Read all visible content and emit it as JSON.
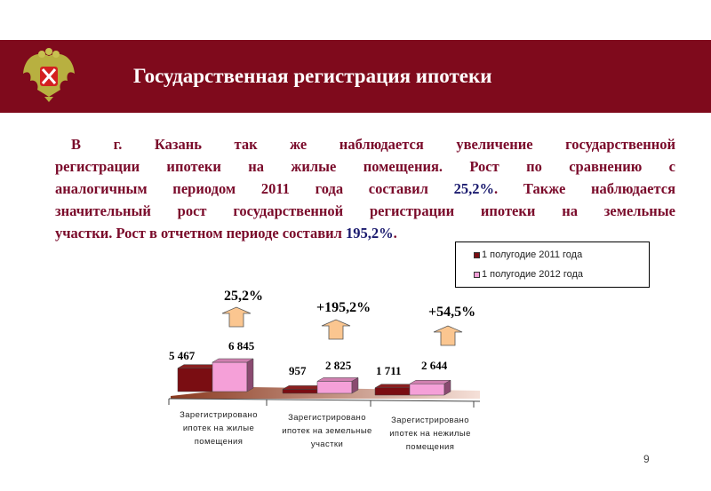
{
  "header": {
    "title": "Государственная регистрация ипотеки"
  },
  "paragraph": {
    "lines": [
      [
        "В г. Казань так же наблюдается увеличение государственной"
      ],
      [
        "регистрации ипотеки на жилые помещения. Рост по сравнению с"
      ],
      [
        "аналогичным периодом 2011 года составил ",
        "25,2%",
        ". Также наблюдается"
      ],
      [
        "значительный рост государственной регистрации ипотеки на земельные"
      ],
      [
        "участки. Рост в отчетном периоде составил ",
        "195,2%",
        "."
      ]
    ]
  },
  "colors": {
    "header": "#7f0a1c",
    "text": "#7a0a2a",
    "highlight": "#1a1a6e",
    "series2011": "#7a0d12",
    "series2012": "#f5a0d8",
    "arrow": "#fbc690"
  },
  "page_number": "9",
  "chart_data": {
    "type": "bar",
    "categories": [
      "Зарегистрировано ипотек на жилые помещения",
      "Зарегистрировано ипотек на земельные участки",
      "Зарегистрировано ипотек на нежилые помещения"
    ],
    "category_lines": [
      [
        "Зарегистрировано",
        "ипотек на жилые",
        "помещения"
      ],
      [
        "Зарегистрировано",
        "ипотек на земельные",
        "участки"
      ],
      [
        "Зарегистрировано",
        "ипотек на нежилые",
        "помещения"
      ]
    ],
    "series": [
      {
        "name": "1 полугодие 2011 года",
        "values": [
          5467,
          957,
          1711
        ],
        "labels": [
          "5 467",
          "957",
          "1 711"
        ]
      },
      {
        "name": "1 полугодие 2012 года",
        "values": [
          6845,
          2825,
          2644
        ],
        "labels": [
          "6 845",
          "2 825",
          "2 644"
        ]
      }
    ],
    "growth_labels": [
      "25,2%",
      "+195,2%",
      "+54,5%"
    ],
    "legend_position": "top-right",
    "ylim": [
      0,
      6845
    ]
  }
}
